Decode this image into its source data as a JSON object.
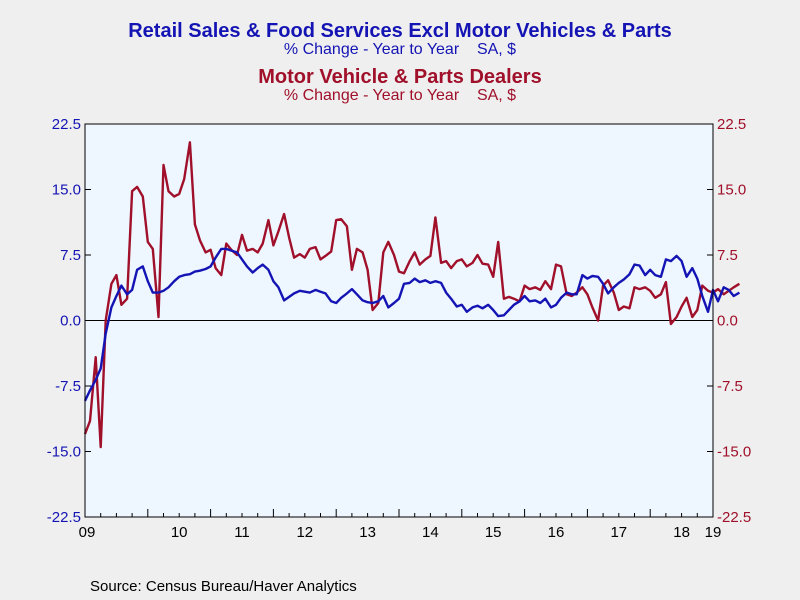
{
  "chart_data": {
    "type": "line",
    "titles": [
      {
        "title": "Retail Sales & Food Services Excl Motor Vehicles & Parts",
        "subtitle": "% Change - Year to Year    SA, $",
        "color": "#1414b4"
      },
      {
        "title": "Motor Vehicle & Parts Dealers",
        "subtitle": "% Change - Year to Year    SA, $",
        "color": "#a0102a"
      }
    ],
    "source": "Source:  Census Bureau/Haver Analytics",
    "x_ticks": [
      "09",
      "10",
      "11",
      "12",
      "13",
      "14",
      "15",
      "16",
      "17",
      "18",
      "19"
    ],
    "x_range": [
      2009.0,
      2019.0
    ],
    "y_left": {
      "range": [
        -22.5,
        22.5
      ],
      "ticks": [
        "22.5",
        "15.0",
        "7.5",
        "0.0",
        "-7.5",
        "-15.0",
        "-22.5"
      ],
      "color": "#1414b4"
    },
    "y_right": {
      "range": [
        -22.5,
        22.5
      ],
      "ticks": [
        "22.5",
        "15.0",
        "7.5",
        "0.0",
        "-7.5",
        "-15.0",
        "-22.5"
      ],
      "color": "#a0102a"
    },
    "zero_line": true,
    "series": [
      {
        "axis": "left",
        "color": "#1414b4",
        "points": [
          [
            2009.0,
            -9.2
          ],
          [
            2009.08,
            -8.0
          ],
          [
            2009.17,
            -6.8
          ],
          [
            2009.25,
            -5.5
          ],
          [
            2009.33,
            -1.5
          ],
          [
            2009.42,
            1.5
          ],
          [
            2009.5,
            2.8
          ],
          [
            2009.58,
            4.0
          ],
          [
            2009.67,
            3.0
          ],
          [
            2009.75,
            3.5
          ],
          [
            2009.83,
            5.8
          ],
          [
            2009.92,
            6.2
          ],
          [
            2010.0,
            4.5
          ],
          [
            2010.08,
            3.2
          ],
          [
            2010.17,
            3.2
          ],
          [
            2010.25,
            3.4
          ],
          [
            2010.33,
            3.8
          ],
          [
            2010.42,
            4.5
          ],
          [
            2010.5,
            5.0
          ],
          [
            2010.58,
            5.2
          ],
          [
            2010.67,
            5.3
          ],
          [
            2010.75,
            5.6
          ],
          [
            2010.83,
            5.7
          ],
          [
            2010.92,
            5.9
          ],
          [
            2011.0,
            6.2
          ],
          [
            2011.08,
            7.2
          ],
          [
            2011.17,
            8.2
          ],
          [
            2011.25,
            8.2
          ],
          [
            2011.33,
            8.0
          ],
          [
            2011.42,
            7.8
          ],
          [
            2011.5,
            7.0
          ],
          [
            2011.58,
            6.2
          ],
          [
            2011.67,
            5.5
          ],
          [
            2011.75,
            6.0
          ],
          [
            2011.83,
            6.4
          ],
          [
            2011.92,
            5.8
          ],
          [
            2012.0,
            4.5
          ],
          [
            2012.08,
            3.8
          ],
          [
            2012.17,
            2.3
          ],
          [
            2012.25,
            2.7
          ],
          [
            2012.33,
            3.1
          ],
          [
            2012.42,
            3.4
          ],
          [
            2012.5,
            3.3
          ],
          [
            2012.58,
            3.2
          ],
          [
            2012.67,
            3.5
          ],
          [
            2012.75,
            3.3
          ],
          [
            2012.83,
            3.1
          ],
          [
            2012.92,
            2.2
          ],
          [
            2013.0,
            2.0
          ],
          [
            2013.08,
            2.6
          ],
          [
            2013.17,
            3.1
          ],
          [
            2013.25,
            3.6
          ],
          [
            2013.33,
            3.0
          ],
          [
            2013.42,
            2.3
          ],
          [
            2013.5,
            2.1
          ],
          [
            2013.58,
            2.0
          ],
          [
            2013.67,
            2.2
          ],
          [
            2013.75,
            2.8
          ],
          [
            2013.83,
            1.5
          ],
          [
            2013.92,
            2.0
          ],
          [
            2014.0,
            2.5
          ],
          [
            2014.08,
            4.2
          ],
          [
            2014.17,
            4.3
          ],
          [
            2014.25,
            4.8
          ],
          [
            2014.33,
            4.4
          ],
          [
            2014.42,
            4.6
          ],
          [
            2014.5,
            4.3
          ],
          [
            2014.58,
            4.5
          ],
          [
            2014.67,
            4.3
          ],
          [
            2014.75,
            3.2
          ],
          [
            2014.83,
            2.5
          ],
          [
            2014.92,
            1.6
          ],
          [
            2015.0,
            1.8
          ],
          [
            2015.08,
            1.0
          ],
          [
            2015.17,
            1.5
          ],
          [
            2015.25,
            1.7
          ],
          [
            2015.33,
            1.4
          ],
          [
            2015.42,
            1.8
          ],
          [
            2015.5,
            1.2
          ],
          [
            2015.58,
            0.5
          ],
          [
            2015.67,
            0.6
          ],
          [
            2015.75,
            1.2
          ],
          [
            2015.83,
            1.8
          ],
          [
            2015.92,
            2.2
          ],
          [
            2016.0,
            2.8
          ],
          [
            2016.08,
            2.2
          ],
          [
            2016.17,
            2.3
          ],
          [
            2016.25,
            2.0
          ],
          [
            2016.33,
            2.5
          ],
          [
            2016.42,
            1.5
          ],
          [
            2016.5,
            1.8
          ],
          [
            2016.58,
            2.6
          ],
          [
            2016.67,
            3.2
          ],
          [
            2016.75,
            3.0
          ],
          [
            2016.83,
            3.0
          ],
          [
            2016.92,
            5.2
          ],
          [
            2017.0,
            4.8
          ],
          [
            2017.08,
            5.1
          ],
          [
            2017.17,
            5.0
          ],
          [
            2017.25,
            4.2
          ],
          [
            2017.33,
            3.1
          ],
          [
            2017.42,
            3.8
          ],
          [
            2017.5,
            4.3
          ],
          [
            2017.58,
            4.7
          ],
          [
            2017.67,
            5.3
          ],
          [
            2017.75,
            6.4
          ],
          [
            2017.83,
            6.3
          ],
          [
            2017.92,
            5.2
          ],
          [
            2018.0,
            5.8
          ],
          [
            2018.08,
            5.2
          ],
          [
            2018.17,
            5.0
          ],
          [
            2018.25,
            7.0
          ],
          [
            2018.33,
            6.8
          ],
          [
            2018.42,
            7.4
          ],
          [
            2018.5,
            6.8
          ],
          [
            2018.58,
            5.0
          ],
          [
            2018.67,
            6.0
          ],
          [
            2018.75,
            4.8
          ],
          [
            2018.83,
            2.8
          ],
          [
            2018.92,
            1.0
          ],
          [
            2019.0,
            3.5
          ],
          [
            2019.08,
            2.2
          ],
          [
            2019.17,
            3.8
          ],
          [
            2019.25,
            3.5
          ],
          [
            2019.33,
            2.8
          ],
          [
            2019.42,
            3.2
          ]
        ]
      },
      {
        "axis": "right",
        "color": "#a0102a",
        "points": [
          [
            2009.0,
            -13.0
          ],
          [
            2009.08,
            -11.5
          ],
          [
            2009.17,
            -4.2
          ],
          [
            2009.25,
            -14.5
          ],
          [
            2009.33,
            0.0
          ],
          [
            2009.42,
            4.2
          ],
          [
            2009.5,
            5.2
          ],
          [
            2009.58,
            1.8
          ],
          [
            2009.67,
            2.5
          ],
          [
            2009.75,
            14.8
          ],
          [
            2009.83,
            15.3
          ],
          [
            2009.92,
            14.2
          ],
          [
            2010.0,
            9.0
          ],
          [
            2010.08,
            8.2
          ],
          [
            2010.17,
            0.4
          ],
          [
            2010.25,
            17.8
          ],
          [
            2010.33,
            14.8
          ],
          [
            2010.42,
            14.2
          ],
          [
            2010.5,
            14.5
          ],
          [
            2010.58,
            16.2
          ],
          [
            2010.67,
            20.4
          ],
          [
            2010.75,
            11.0
          ],
          [
            2010.83,
            9.2
          ],
          [
            2010.92,
            7.8
          ],
          [
            2011.0,
            8.1
          ],
          [
            2011.08,
            6.0
          ],
          [
            2011.17,
            5.2
          ],
          [
            2011.25,
            8.8
          ],
          [
            2011.33,
            8.1
          ],
          [
            2011.42,
            7.5
          ],
          [
            2011.5,
            9.8
          ],
          [
            2011.58,
            8.0
          ],
          [
            2011.67,
            8.2
          ],
          [
            2011.75,
            7.8
          ],
          [
            2011.83,
            8.8
          ],
          [
            2011.92,
            11.5
          ],
          [
            2012.0,
            8.6
          ],
          [
            2012.08,
            10.2
          ],
          [
            2012.17,
            12.2
          ],
          [
            2012.25,
            9.5
          ],
          [
            2012.33,
            7.2
          ],
          [
            2012.42,
            7.6
          ],
          [
            2012.5,
            7.2
          ],
          [
            2012.58,
            8.2
          ],
          [
            2012.67,
            8.4
          ],
          [
            2012.75,
            7.0
          ],
          [
            2012.83,
            7.4
          ],
          [
            2012.92,
            7.9
          ],
          [
            2013.0,
            11.5
          ],
          [
            2013.08,
            11.6
          ],
          [
            2013.17,
            10.8
          ],
          [
            2013.25,
            5.8
          ],
          [
            2013.33,
            8.2
          ],
          [
            2013.42,
            7.8
          ],
          [
            2013.5,
            5.8
          ],
          [
            2013.58,
            1.2
          ],
          [
            2013.67,
            2.0
          ],
          [
            2013.75,
            7.8
          ],
          [
            2013.83,
            9.0
          ],
          [
            2013.92,
            7.5
          ],
          [
            2014.0,
            5.6
          ],
          [
            2014.08,
            5.4
          ],
          [
            2014.17,
            6.8
          ],
          [
            2014.25,
            7.8
          ],
          [
            2014.33,
            6.4
          ],
          [
            2014.42,
            7.0
          ],
          [
            2014.5,
            7.4
          ],
          [
            2014.58,
            11.8
          ],
          [
            2014.67,
            6.6
          ],
          [
            2014.75,
            6.8
          ],
          [
            2014.83,
            6.0
          ],
          [
            2014.92,
            6.8
          ],
          [
            2015.0,
            7.0
          ],
          [
            2015.08,
            6.2
          ],
          [
            2015.17,
            6.6
          ],
          [
            2015.25,
            7.5
          ],
          [
            2015.33,
            6.5
          ],
          [
            2015.42,
            6.4
          ],
          [
            2015.5,
            5.0
          ],
          [
            2015.58,
            9.0
          ],
          [
            2015.67,
            2.5
          ],
          [
            2015.75,
            2.7
          ],
          [
            2015.83,
            2.5
          ],
          [
            2015.92,
            2.2
          ],
          [
            2016.0,
            4.0
          ],
          [
            2016.08,
            3.6
          ],
          [
            2016.17,
            3.8
          ],
          [
            2016.25,
            3.5
          ],
          [
            2016.33,
            4.5
          ],
          [
            2016.42,
            3.6
          ],
          [
            2016.5,
            6.4
          ],
          [
            2016.58,
            6.2
          ],
          [
            2016.67,
            3.0
          ],
          [
            2016.75,
            2.8
          ],
          [
            2016.83,
            3.2
          ],
          [
            2016.92,
            3.8
          ],
          [
            2017.0,
            3.0
          ],
          [
            2017.08,
            1.5
          ],
          [
            2017.17,
            0.0
          ],
          [
            2017.25,
            4.0
          ],
          [
            2017.33,
            4.6
          ],
          [
            2017.42,
            3.2
          ],
          [
            2017.5,
            1.2
          ],
          [
            2017.58,
            1.6
          ],
          [
            2017.67,
            1.4
          ],
          [
            2017.75,
            3.8
          ],
          [
            2017.83,
            3.6
          ],
          [
            2017.92,
            3.8
          ],
          [
            2018.0,
            3.4
          ],
          [
            2018.08,
            2.6
          ],
          [
            2018.17,
            3.0
          ],
          [
            2018.25,
            4.4
          ],
          [
            2018.33,
            -0.4
          ],
          [
            2018.42,
            0.4
          ],
          [
            2018.5,
            1.6
          ],
          [
            2018.58,
            2.6
          ],
          [
            2018.67,
            0.4
          ],
          [
            2018.75,
            1.2
          ],
          [
            2018.83,
            4.0
          ],
          [
            2018.92,
            3.4
          ],
          [
            2019.0,
            3.2
          ],
          [
            2019.08,
            3.6
          ],
          [
            2019.17,
            3.0
          ],
          [
            2019.25,
            3.4
          ],
          [
            2019.33,
            3.8
          ],
          [
            2019.42,
            4.2
          ]
        ]
      }
    ]
  }
}
